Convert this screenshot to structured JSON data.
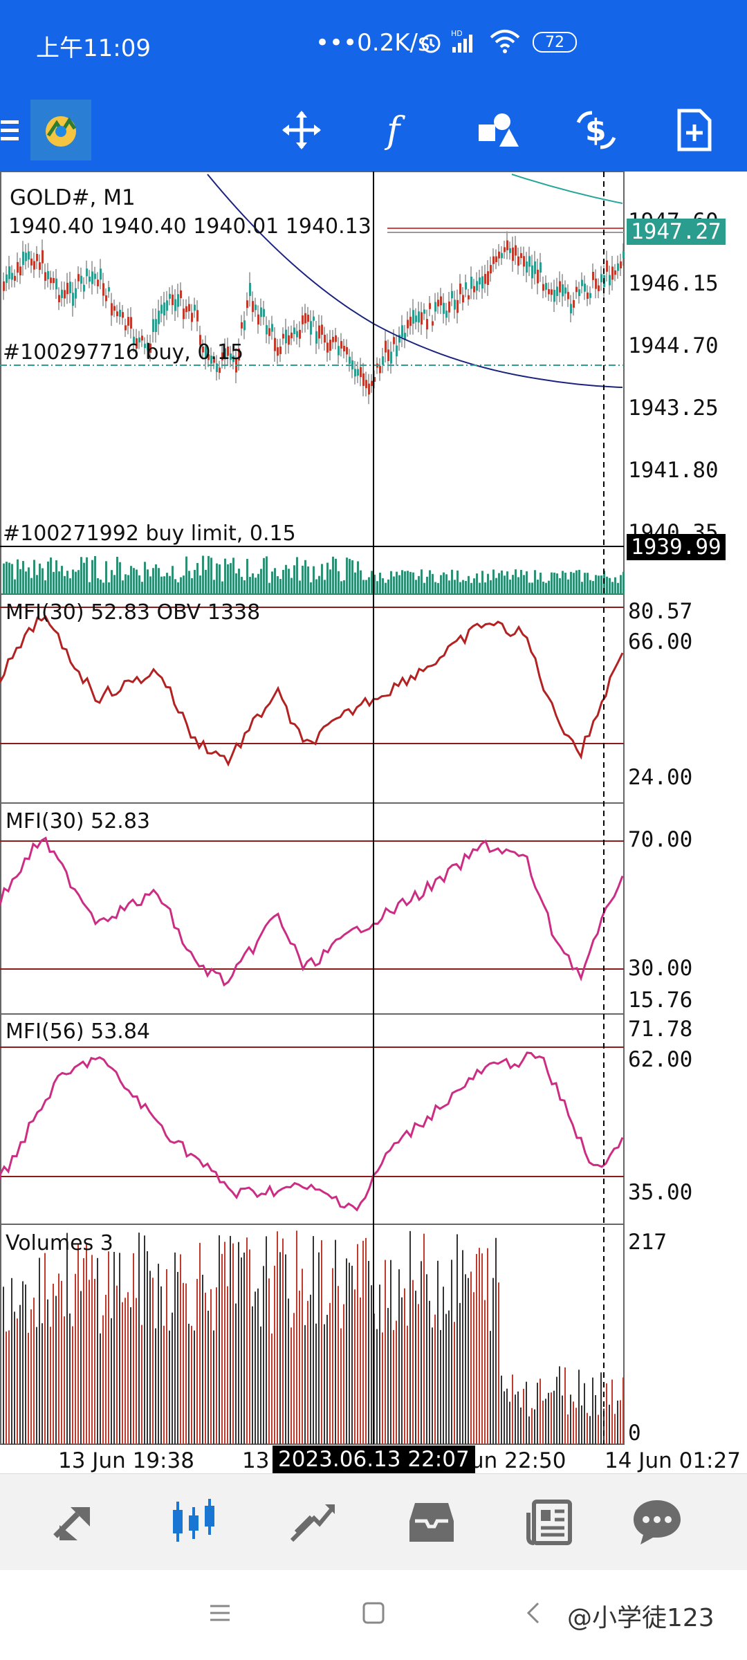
{
  "status_bar": {
    "time": "上午11:09",
    "net_speed": "•••0.2K/s",
    "battery": "72",
    "icons": [
      "alarm-icon",
      "hd-signal-icon",
      "wifi-icon",
      "battery-icon"
    ]
  },
  "toolbar": {
    "icons": [
      "menu-icon",
      "app-logo",
      "crosshair-move-icon",
      "indicator-f-icon",
      "objects-icon",
      "trade-icon",
      "new-order-icon"
    ]
  },
  "chart": {
    "symbol": "GOLD#, M1",
    "ohlc": "1940.40 1940.40 1940.01 1940.13",
    "order_buy": "#100297716 buy, 0.15",
    "order_buy_limit": "#100271992 buy limit, 0.15",
    "price_ticks": [
      "1947.60",
      "1946.15",
      "1944.70",
      "1943.25",
      "1941.80",
      "1940.35"
    ],
    "ask_tag": "1947.27",
    "crosshair_price": "1939.99",
    "colors": {
      "ask_tag": "#2a9d8f",
      "crosshair_tag": "#000000",
      "bars": "#2f8f73"
    }
  },
  "panels": {
    "mfi_obv": {
      "label": "MFI(30) 52.83 OBV 1338",
      "ticks": [
        "80.57",
        "66.00",
        "24.00"
      ]
    },
    "mfi30": {
      "label": "MFI(30) 52.83",
      "ticks": [
        "70.00",
        "30.00",
        "15.76"
      ]
    },
    "mfi56": {
      "label": "MFI(56) 53.84",
      "ticks": [
        "71.78",
        "62.00",
        "35.00"
      ]
    },
    "volumes": {
      "label": "Volumes 3",
      "ticks": [
        "217",
        "0"
      ]
    }
  },
  "time_axis": {
    "labels": [
      "13 Jun 19:38",
      "13",
      "un 22:50",
      "14 Jun 01:27"
    ],
    "crosshair_time": "2023.06.13 22:07"
  },
  "bottom_nav": {
    "items": [
      "quotes-icon",
      "chart-icon",
      "trade-icon",
      "history-icon",
      "news-icon",
      "chat-icon"
    ],
    "active": "chart-icon",
    "accent": "#1976d2"
  },
  "system_nav": {
    "watermark": "@小学徒123"
  }
}
